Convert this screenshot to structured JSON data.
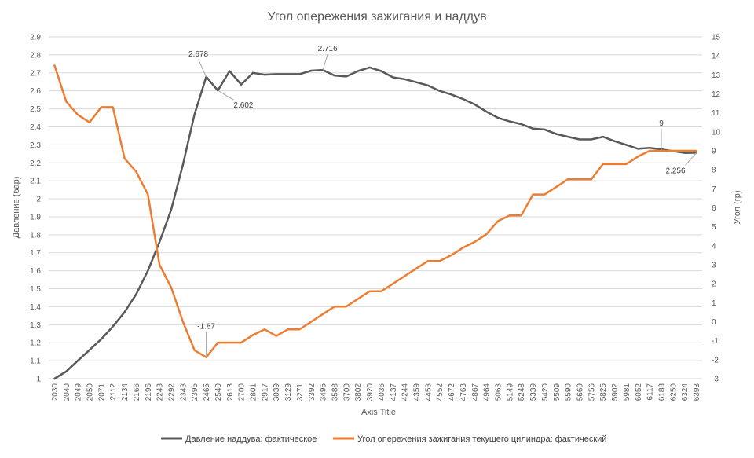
{
  "chart_data": {
    "type": "line",
    "title": "Угол опережения зажигания и наддув",
    "xlabel": "Axis Title",
    "ylabel_left": "Давление (бар)",
    "ylabel_right": "Угол (гр)",
    "ylim_left": [
      1,
      2.9
    ],
    "ylim_right": [
      -3,
      15
    ],
    "yticks_left": [
      "1",
      "1.1",
      "1.2",
      "1.3",
      "1.4",
      "1.5",
      "1.6",
      "1.7",
      "1.8",
      "1.9",
      "2",
      "2.1",
      "2.2",
      "2.3",
      "2.4",
      "2.5",
      "2.6",
      "2.7",
      "2.8",
      "2.9"
    ],
    "yticks_right": [
      "-3",
      "-2",
      "-1",
      "0",
      "1",
      "2",
      "3",
      "4",
      "5",
      "6",
      "7",
      "8",
      "9",
      "10",
      "11",
      "12",
      "13",
      "14",
      "15"
    ],
    "grid": "horizontal",
    "legend_position": "bottom",
    "categories": [
      "2030",
      "2040",
      "2049",
      "2050",
      "2071",
      "2112",
      "2134",
      "2166",
      "2196",
      "2243",
      "2292",
      "2343",
      "2395",
      "2465",
      "2540",
      "2613",
      "2700",
      "2801",
      "2917",
      "3039",
      "3129",
      "3271",
      "3392",
      "3495",
      "3588",
      "3700",
      "3802",
      "3920",
      "4036",
      "4137",
      "4244",
      "4359",
      "4453",
      "4552",
      "4672",
      "4763",
      "4867",
      "4964",
      "5063",
      "5149",
      "5248",
      "5339",
      "5420",
      "5509",
      "5590",
      "5669",
      "5756",
      "5825",
      "5902",
      "5981",
      "6052",
      "6117",
      "6188",
      "6250",
      "6324",
      "6393"
    ],
    "series": [
      {
        "name": "Давление наддува: фактическое",
        "color": "#595959",
        "axis": "left",
        "values": [
          1.0,
          1.04,
          1.1,
          1.16,
          1.22,
          1.29,
          1.37,
          1.47,
          1.6,
          1.76,
          1.94,
          2.19,
          2.47,
          2.678,
          2.602,
          2.71,
          2.635,
          2.7,
          2.69,
          2.693,
          2.693,
          2.693,
          2.712,
          2.716,
          2.685,
          2.68,
          2.71,
          2.73,
          2.71,
          2.675,
          2.665,
          2.648,
          2.63,
          2.6,
          2.58,
          2.555,
          2.525,
          2.485,
          2.45,
          2.43,
          2.415,
          2.39,
          2.385,
          2.36,
          2.345,
          2.33,
          2.33,
          2.345,
          2.32,
          2.3,
          2.278,
          2.283,
          2.275,
          2.265,
          2.255,
          2.256
        ]
      },
      {
        "name": "Угол опережения зажигания текущего цилиндра: фактический",
        "color": "#ed7d31",
        "axis": "right",
        "values": [
          13.5,
          11.6,
          10.9,
          10.5,
          11.3,
          11.3,
          8.6,
          7.9,
          6.7,
          3.0,
          1.8,
          0.0,
          -1.5,
          -1.87,
          -1.1,
          -1.1,
          -1.1,
          -0.7,
          -0.4,
          -0.75,
          -0.4,
          -0.4,
          0.0,
          0.4,
          0.8,
          0.8,
          1.2,
          1.6,
          1.6,
          2.0,
          2.4,
          2.8,
          3.2,
          3.2,
          3.5,
          3.9,
          4.2,
          4.6,
          5.3,
          5.6,
          5.6,
          6.7,
          6.7,
          7.1,
          7.5,
          7.5,
          7.5,
          8.3,
          8.3,
          8.3,
          8.7,
          9.0,
          9.0,
          9.0,
          9.0,
          9.0
        ]
      }
    ],
    "annotations": [
      {
        "series": 0,
        "index": 13,
        "text": "2.678"
      },
      {
        "series": 0,
        "index": 14,
        "text": "2.602"
      },
      {
        "series": 0,
        "index": 23,
        "text": "2.716"
      },
      {
        "series": 0,
        "index": 55,
        "text": "2.256"
      },
      {
        "series": 1,
        "index": 13,
        "text": "-1.87"
      },
      {
        "series": 1,
        "index": 52,
        "text": "9"
      }
    ]
  }
}
